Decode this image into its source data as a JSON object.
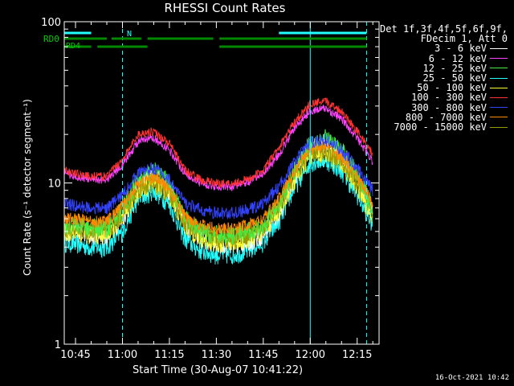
{
  "chart_data": {
    "type": "line",
    "title": "RHESSI Count Rates",
    "xlabel": "Start Time (30-Aug-07 10:41:22)",
    "ylabel": "Count Rate (s⁻¹ detector segment⁻¹)",
    "y_scale": "log",
    "ylim": [
      1,
      100
    ],
    "xlim": [
      "10:41:22",
      "12:21:00"
    ],
    "x_ticks": [
      "10:45",
      "11:00",
      "11:15",
      "11:30",
      "11:45",
      "12:00",
      "12:15"
    ],
    "y_ticks": [
      "1",
      "10",
      "100"
    ],
    "legend_header": [
      "Det 1f,3f,4f,5f,6f,9f,",
      "FDecim 1, Att 0"
    ],
    "legend_position": "right",
    "flag_labels": [
      "RD0",
      "RD4",
      "N"
    ],
    "timestamp": "16-Oct-2021 10:42",
    "x_minutes_after_1045": [
      -3.6,
      0,
      5,
      10,
      15,
      20,
      25,
      30,
      35,
      40,
      45,
      50,
      55,
      60,
      65,
      70,
      75,
      80,
      85,
      90,
      95
    ],
    "series": [
      {
        "name": "3 - 6 keV",
        "color": "#ffffff",
        "values": [
          5.0,
          5.0,
          4.8,
          4.7,
          6.0,
          9.5,
          11.0,
          9.0,
          5.5,
          4.5,
          4.2,
          4.2,
          4.3,
          4.8,
          6.5,
          11.0,
          16.5,
          17.0,
          14.5,
          10.5,
          6.5
        ]
      },
      {
        "name": "6 - 12 keV",
        "color": "#ff44ff",
        "values": [
          11.5,
          11.0,
          10.5,
          10.5,
          13.0,
          18.0,
          19.0,
          16.0,
          11.5,
          10.0,
          9.5,
          9.5,
          10.0,
          11.5,
          15.0,
          22.0,
          28.0,
          29.0,
          25.0,
          19.0,
          13.5
        ]
      },
      {
        "name": "12 - 25 keV",
        "color": "#44ee44",
        "values": [
          5.5,
          5.5,
          5.3,
          5.3,
          7.0,
          10.5,
          12.0,
          10.0,
          6.0,
          5.0,
          4.8,
          4.8,
          5.0,
          5.5,
          7.5,
          12.0,
          18.0,
          19.0,
          16.0,
          11.5,
          7.0
        ]
      },
      {
        "name": "25 - 50 keV",
        "color": "#22ffff",
        "values": [
          4.3,
          4.2,
          4.0,
          4.0,
          5.0,
          8.0,
          9.0,
          7.5,
          4.5,
          3.8,
          3.6,
          3.6,
          3.8,
          4.3,
          5.8,
          9.5,
          13.5,
          14.0,
          12.0,
          8.5,
          5.5
        ]
      },
      {
        "name": "50 - 100 keV",
        "color": "#ffff33",
        "values": [
          5.0,
          5.0,
          4.8,
          4.8,
          6.0,
          9.0,
          10.0,
          8.5,
          5.5,
          4.5,
          4.3,
          4.3,
          4.5,
          5.0,
          6.8,
          10.5,
          15.0,
          15.5,
          13.0,
          9.5,
          6.0
        ]
      },
      {
        "name": "100 - 300 keV",
        "color": "#ff3333",
        "values": [
          12.0,
          11.5,
          11.0,
          11.0,
          14.0,
          20.0,
          21.0,
          17.5,
          12.0,
          10.5,
          10.0,
          10.0,
          10.5,
          12.0,
          16.5,
          24.0,
          31.0,
          32.0,
          28.0,
          21.0,
          15.0
        ]
      },
      {
        "name": "300 - 800 keV",
        "color": "#3344ff",
        "values": [
          7.5,
          7.2,
          7.0,
          7.0,
          8.5,
          11.5,
          12.5,
          10.5,
          7.5,
          6.8,
          6.5,
          6.5,
          6.8,
          7.5,
          9.5,
          13.5,
          18.0,
          18.5,
          16.0,
          12.5,
          9.0
        ]
      },
      {
        "name": "800 - 7000 keV",
        "color": "#ff8800",
        "values": [
          6.0,
          6.0,
          5.8,
          5.8,
          7.2,
          10.0,
          11.0,
          9.2,
          6.2,
          5.5,
          5.2,
          5.2,
          5.5,
          6.0,
          8.0,
          12.0,
          16.5,
          17.0,
          14.5,
          11.0,
          7.5
        ]
      },
      {
        "name": "7000 - 15000 keV",
        "color": "#999900",
        "values": [
          5.2,
          5.2,
          5.0,
          5.0,
          6.4,
          9.2,
          10.2,
          8.6,
          5.6,
          4.8,
          4.6,
          4.6,
          4.8,
          5.3,
          7.2,
          11.2,
          15.5,
          16.0,
          13.5,
          10.2,
          6.8
        ]
      }
    ],
    "flag_bars": [
      {
        "label": "N",
        "color": "#22ffff",
        "segments": [
          [
            -3.6,
            5
          ],
          [
            65,
            93
          ]
        ]
      },
      {
        "label": "RD0",
        "color": "#008800",
        "segments": [
          [
            -3.6,
            10
          ],
          [
            11.5,
            21
          ],
          [
            23,
            44
          ],
          [
            46,
            93
          ]
        ]
      }
    ],
    "vertical_markers": [
      {
        "minutes": -3.6,
        "color": "#22ffff",
        "style": "solid"
      },
      {
        "minutes": 15,
        "color": "#22ffff",
        "style": "dashed"
      },
      {
        "minutes": 75,
        "color": "#22ffff",
        "style": "solid"
      },
      {
        "minutes": 93,
        "color": "#22ffff",
        "style": "dashed"
      }
    ]
  }
}
